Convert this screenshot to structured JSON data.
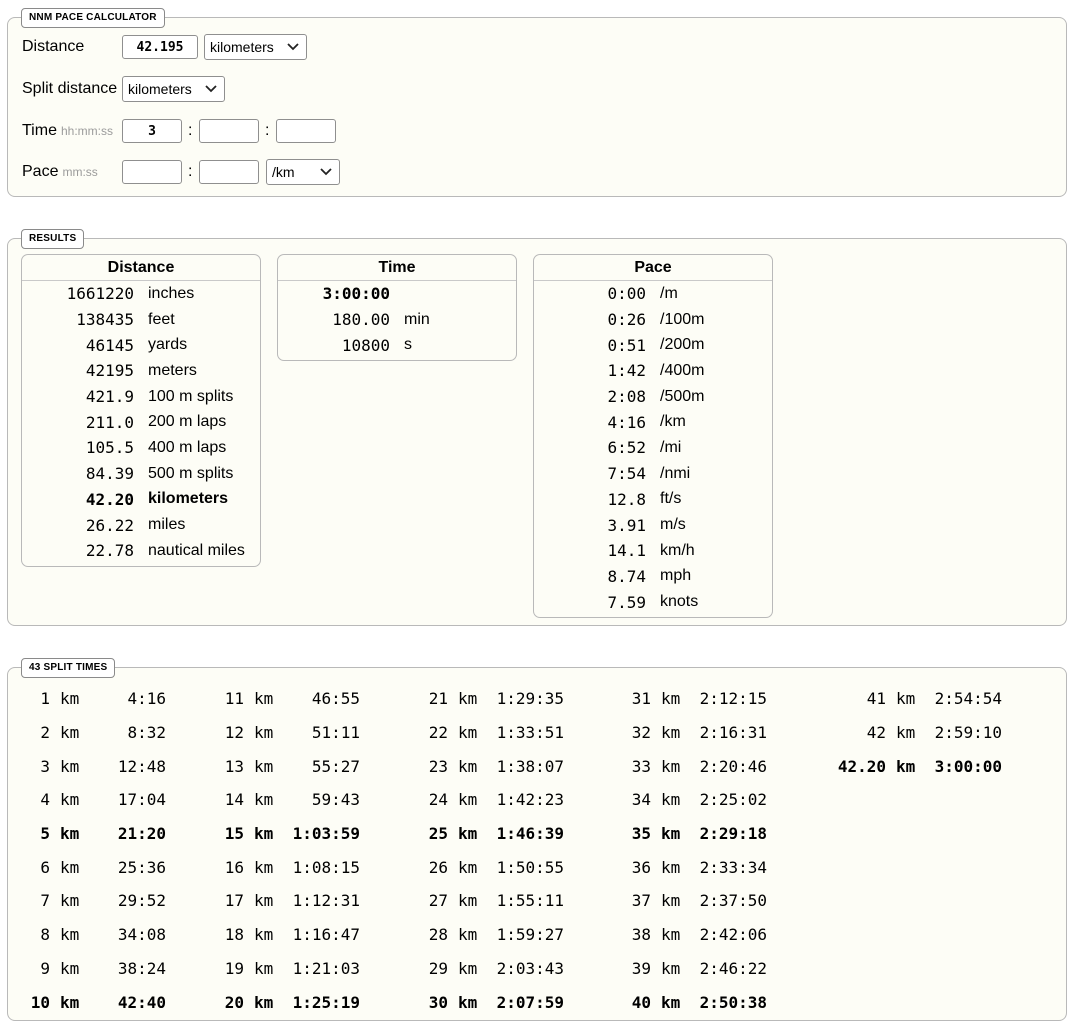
{
  "calculator": {
    "legend": "NNM PACE CALCULATOR",
    "distance_label": "Distance",
    "distance_value": "42.195",
    "distance_unit": "kilometers",
    "split_label": "Split distance",
    "split_unit": "kilometers",
    "time_label": "Time",
    "time_hint": "hh:mm:ss",
    "time_hours": "3",
    "time_minutes": "",
    "time_seconds": "",
    "pace_label": "Pace",
    "pace_hint": "mm:ss",
    "pace_minutes": "",
    "pace_seconds": "",
    "pace_unit": "/km",
    "colon": ":"
  },
  "results": {
    "legend": "RESULTS",
    "distance": {
      "header": "Distance",
      "rows": [
        {
          "value": "1661220",
          "unit": "inches"
        },
        {
          "value": "138435",
          "unit": "feet"
        },
        {
          "value": "46145",
          "unit": "yards"
        },
        {
          "value": "42195",
          "unit": "meters"
        },
        {
          "value": "421.9",
          "unit": "100 m splits"
        },
        {
          "value": "211.0",
          "unit": "200 m laps"
        },
        {
          "value": "105.5",
          "unit": "400 m laps"
        },
        {
          "value": "84.39",
          "unit": "500 m splits"
        },
        {
          "value": "42.20",
          "unit": "kilometers",
          "bold": true
        },
        {
          "value": "26.22",
          "unit": "miles"
        },
        {
          "value": "22.78",
          "unit": "nautical miles"
        }
      ]
    },
    "time": {
      "header": "Time",
      "rows": [
        {
          "value": "3:00:00",
          "unit": "",
          "bold": true
        },
        {
          "value": "180.00",
          "unit": "min"
        },
        {
          "value": "10800",
          "unit": "s"
        }
      ]
    },
    "pace": {
      "header": "Pace",
      "rows": [
        {
          "value": "0:00",
          "unit": "/m"
        },
        {
          "value": "0:26",
          "unit": "/100m"
        },
        {
          "value": "0:51",
          "unit": "/200m"
        },
        {
          "value": "1:42",
          "unit": "/400m"
        },
        {
          "value": "2:08",
          "unit": "/500m"
        },
        {
          "value": "4:16",
          "unit": "/km"
        },
        {
          "value": "6:52",
          "unit": "/mi"
        },
        {
          "value": "7:54",
          "unit": "/nmi"
        },
        {
          "value": "12.8",
          "unit": "ft/s"
        },
        {
          "value": "3.91",
          "unit": "m/s"
        },
        {
          "value": "14.1",
          "unit": "km/h"
        },
        {
          "value": "8.74",
          "unit": "mph"
        },
        {
          "value": "7.59",
          "unit": "knots"
        }
      ]
    }
  },
  "splits": {
    "legend": "43 SPLIT TIMES",
    "columns": [
      [
        {
          "d": "1",
          "u": "km",
          "t": "4:16"
        },
        {
          "d": "2",
          "u": "km",
          "t": "8:32"
        },
        {
          "d": "3",
          "u": "km",
          "t": "12:48"
        },
        {
          "d": "4",
          "u": "km",
          "t": "17:04"
        },
        {
          "d": "5",
          "u": "km",
          "t": "21:20",
          "bold": true
        },
        {
          "d": "6",
          "u": "km",
          "t": "25:36"
        },
        {
          "d": "7",
          "u": "km",
          "t": "29:52"
        },
        {
          "d": "8",
          "u": "km",
          "t": "34:08"
        },
        {
          "d": "9",
          "u": "km",
          "t": "38:24"
        },
        {
          "d": "10",
          "u": "km",
          "t": "42:40",
          "bold": true
        }
      ],
      [
        {
          "d": "11",
          "u": "km",
          "t": "46:55"
        },
        {
          "d": "12",
          "u": "km",
          "t": "51:11"
        },
        {
          "d": "13",
          "u": "km",
          "t": "55:27"
        },
        {
          "d": "14",
          "u": "km",
          "t": "59:43"
        },
        {
          "d": "15",
          "u": "km",
          "t": "1:03:59",
          "bold": true
        },
        {
          "d": "16",
          "u": "km",
          "t": "1:08:15"
        },
        {
          "d": "17",
          "u": "km",
          "t": "1:12:31"
        },
        {
          "d": "18",
          "u": "km",
          "t": "1:16:47"
        },
        {
          "d": "19",
          "u": "km",
          "t": "1:21:03"
        },
        {
          "d": "20",
          "u": "km",
          "t": "1:25:19",
          "bold": true
        }
      ],
      [
        {
          "d": "21",
          "u": "km",
          "t": "1:29:35"
        },
        {
          "d": "22",
          "u": "km",
          "t": "1:33:51"
        },
        {
          "d": "23",
          "u": "km",
          "t": "1:38:07"
        },
        {
          "d": "24",
          "u": "km",
          "t": "1:42:23"
        },
        {
          "d": "25",
          "u": "km",
          "t": "1:46:39",
          "bold": true
        },
        {
          "d": "26",
          "u": "km",
          "t": "1:50:55"
        },
        {
          "d": "27",
          "u": "km",
          "t": "1:55:11"
        },
        {
          "d": "28",
          "u": "km",
          "t": "1:59:27"
        },
        {
          "d": "29",
          "u": "km",
          "t": "2:03:43"
        },
        {
          "d": "30",
          "u": "km",
          "t": "2:07:59",
          "bold": true
        }
      ],
      [
        {
          "d": "31",
          "u": "km",
          "t": "2:12:15"
        },
        {
          "d": "32",
          "u": "km",
          "t": "2:16:31"
        },
        {
          "d": "33",
          "u": "km",
          "t": "2:20:46"
        },
        {
          "d": "34",
          "u": "km",
          "t": "2:25:02"
        },
        {
          "d": "35",
          "u": "km",
          "t": "2:29:18",
          "bold": true
        },
        {
          "d": "36",
          "u": "km",
          "t": "2:33:34"
        },
        {
          "d": "37",
          "u": "km",
          "t": "2:37:50"
        },
        {
          "d": "38",
          "u": "km",
          "t": "2:42:06"
        },
        {
          "d": "39",
          "u": "km",
          "t": "2:46:22"
        },
        {
          "d": "40",
          "u": "km",
          "t": "2:50:38",
          "bold": true
        }
      ],
      [
        {
          "d": "41",
          "u": "km",
          "t": "2:54:54"
        },
        {
          "d": "42",
          "u": "km",
          "t": "2:59:10"
        },
        {
          "d": "42.20",
          "u": "km",
          "t": "3:00:00",
          "bold": true
        }
      ]
    ]
  }
}
